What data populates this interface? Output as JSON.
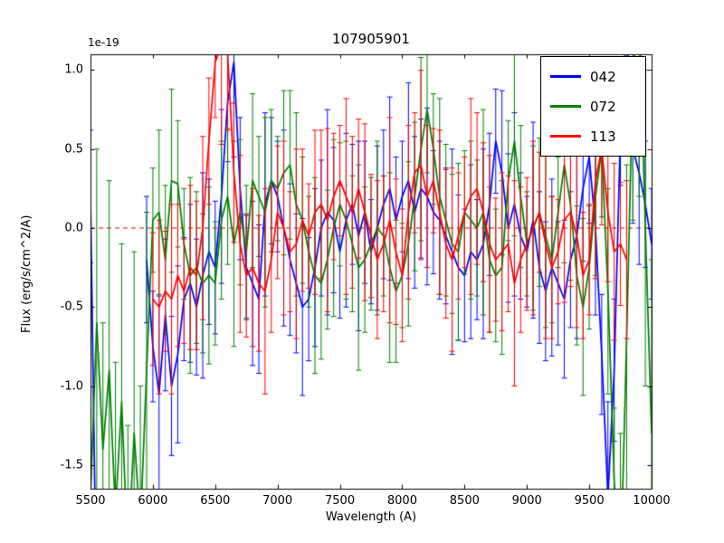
{
  "chart_data": {
    "type": "line",
    "title": "107905901",
    "xlabel": "Wavelength (A)",
    "ylabel": "Flux (erg/s/cm^2/A)",
    "y_offset_label": "1e-19",
    "xlim": [
      5500,
      10000
    ],
    "ylim": [
      -1.65,
      1.1
    ],
    "xticks": [
      5500,
      6000,
      6500,
      7000,
      7500,
      8000,
      8500,
      9000,
      9500,
      10000
    ],
    "yticks": [
      -1.5,
      -1.0,
      -0.5,
      0.0,
      0.5,
      1.0
    ],
    "grid": false,
    "background": "#ffffff",
    "zero_line": {
      "y": 0.0,
      "color": "#dd0000",
      "style": "dashed"
    },
    "legend": {
      "position": "upper right",
      "entries": [
        "042",
        "072",
        "113"
      ]
    },
    "series": [
      {
        "name": "042",
        "color": "#0000ff",
        "x_start": 5500,
        "x_step": 50,
        "y": [
          0.2,
          -2.5,
          null,
          null,
          null,
          null,
          null,
          null,
          null,
          -0.2,
          -0.75,
          -1.05,
          -0.55,
          -1.0,
          -0.8,
          -0.45,
          -0.35,
          -0.5,
          -0.3,
          -0.15,
          -0.25,
          0.2,
          0.8,
          1.05,
          0.25,
          -0.25,
          -0.35,
          -0.45,
          0.15,
          0.3,
          0.2,
          0.0,
          -0.2,
          -0.35,
          -0.5,
          -0.45,
          -0.25,
          0.0,
          0.1,
          0.05,
          -0.15,
          0.05,
          0.15,
          -0.05,
          0.1,
          -0.15,
          0.0,
          0.15,
          0.25,
          0.05,
          0.2,
          0.3,
          0.1,
          0.25,
          0.2,
          0.1,
          0.05,
          -0.05,
          -0.15,
          -0.25,
          -0.3,
          -0.15,
          -0.2,
          -0.1,
          0.15,
          0.55,
          0.35,
          0.0,
          0.15,
          -0.05,
          -0.15,
          0.05,
          -0.25,
          -0.4,
          -0.25,
          -0.35,
          -0.45,
          -0.2,
          -0.05,
          0.25,
          0.45,
          0.0,
          -0.8,
          -1.7,
          -0.9,
          0.6,
          1.3,
          0.5,
          0.35,
          0.15,
          -0.1
        ],
        "err": [
          0.42,
          0.55,
          0.38,
          0.6,
          0.45,
          0.33,
          0.52,
          0.47,
          0.58,
          0.4,
          0.35,
          0.62,
          0.48,
          0.44,
          0.56,
          0.39,
          0.5,
          0.43,
          0.65,
          0.46,
          0.42,
          0.55,
          0.38,
          0.6,
          0.45,
          0.33,
          0.52,
          0.47,
          0.58,
          0.4,
          0.35,
          0.62,
          0.48,
          0.44,
          0.56,
          0.39,
          0.5,
          0.43,
          0.65,
          0.46,
          0.42,
          0.55,
          0.38,
          0.6,
          0.45,
          0.33,
          0.52,
          0.47,
          0.58,
          0.4,
          0.35,
          0.62,
          0.48,
          0.44,
          0.56,
          0.39,
          0.5,
          0.43,
          0.65,
          0.46,
          0.42,
          0.55,
          0.38,
          0.6,
          0.45,
          0.33,
          0.52,
          0.47,
          0.58,
          0.4,
          0.35,
          0.62,
          0.48,
          0.44,
          0.56,
          0.39,
          0.5,
          0.43,
          0.65,
          0.46,
          0.42,
          0.55,
          0.38,
          0.6,
          0.45,
          0.33,
          0.52,
          0.47,
          0.58,
          0.4,
          0.35
        ]
      },
      {
        "name": "072",
        "color": "#008000",
        "x_start": 5500,
        "x_step": 50,
        "y": [
          -1.7,
          -0.6,
          -1.4,
          -0.9,
          -1.8,
          -1.1,
          -2.1,
          -1.3,
          -1.9,
          -0.9,
          0.05,
          0.1,
          -0.2,
          0.3,
          0.28,
          -0.1,
          -0.3,
          -0.25,
          -0.35,
          -0.3,
          -0.35,
          0.05,
          0.2,
          -0.1,
          0.1,
          -0.15,
          0.3,
          0.2,
          0.1,
          0.3,
          0.25,
          0.35,
          0.4,
          0.15,
          0.05,
          -0.15,
          -0.3,
          -0.35,
          -0.2,
          0.0,
          0.15,
          0.05,
          -0.1,
          -0.25,
          -0.2,
          -0.1,
          0.0,
          -0.05,
          -0.25,
          -0.4,
          -0.3,
          -0.1,
          0.2,
          0.5,
          0.75,
          0.5,
          0.2,
          0.05,
          -0.1,
          -0.15,
          0.1,
          0.05,
          0.0,
          0.1,
          -0.2,
          -0.3,
          -0.25,
          0.3,
          0.55,
          0.2,
          -0.1,
          0.0,
          0.1,
          -0.05,
          -0.2,
          0.1,
          0.4,
          0.15,
          -0.3,
          -0.5,
          -0.25,
          0.2,
          0.5,
          -0.4,
          -1.6,
          -2.2,
          -0.7,
          1.0,
          1.4,
          0.0,
          -1.3
        ],
        "err": [
          0.9,
          1.1,
          0.8,
          1.2,
          0.95,
          1.0,
          0.85,
          1.15,
          0.9,
          1.0,
          0.33,
          0.52,
          0.47,
          0.58,
          0.4,
          0.35,
          0.62,
          0.48,
          0.44,
          0.56,
          0.39,
          0.5,
          0.43,
          0.65,
          0.46,
          0.42,
          0.55,
          0.38,
          0.6,
          0.45,
          0.33,
          0.52,
          0.47,
          0.58,
          0.4,
          0.35,
          0.62,
          0.48,
          0.44,
          0.56,
          0.39,
          0.5,
          0.43,
          0.65,
          0.46,
          0.42,
          0.55,
          0.38,
          0.6,
          0.45,
          0.33,
          0.52,
          0.47,
          0.58,
          0.4,
          0.35,
          0.62,
          0.48,
          0.44,
          0.56,
          0.39,
          0.5,
          0.43,
          0.65,
          0.46,
          0.42,
          0.55,
          0.38,
          0.6,
          0.45,
          0.33,
          0.52,
          0.47,
          0.58,
          0.4,
          0.35,
          0.62,
          0.48,
          0.44,
          0.56,
          0.39,
          0.5,
          0.43,
          0.65,
          0.46,
          0.9,
          1.1,
          0.95,
          1.2,
          1.0,
          1.1
        ]
      },
      {
        "name": "113",
        "color": "#ff0000",
        "x_start": 5500,
        "x_step": 50,
        "y": [
          null,
          null,
          null,
          null,
          null,
          null,
          null,
          null,
          null,
          null,
          -0.45,
          -0.5,
          -0.4,
          -0.45,
          -0.3,
          -0.4,
          -0.25,
          -0.3,
          0.0,
          0.55,
          1.05,
          1.15,
          1.1,
          0.35,
          -0.1,
          -0.3,
          -0.25,
          -0.35,
          -0.4,
          -0.2,
          0.1,
          0.0,
          -0.15,
          -0.1,
          0.05,
          -0.05,
          0.1,
          0.15,
          0.05,
          0.2,
          0.3,
          0.2,
          0.1,
          0.25,
          0.1,
          -0.05,
          -0.2,
          -0.1,
          0.05,
          -0.15,
          -0.3,
          0.1,
          0.35,
          0.4,
          0.2,
          0.3,
          0.1,
          -0.1,
          -0.2,
          -0.05,
          0.1,
          0.2,
          0.25,
          0.1,
          -0.1,
          -0.2,
          -0.15,
          -0.1,
          -0.35,
          -0.2,
          -0.1,
          0.0,
          0.1,
          -0.1,
          -0.25,
          -0.15,
          0.05,
          0.1,
          -0.05,
          -0.3,
          -0.2,
          0.3,
          0.5,
          0.1,
          -0.15,
          -0.1,
          -0.2,
          null,
          null,
          null,
          null
        ],
        "err": [
          0.35,
          0.62,
          0.48,
          0.44,
          0.56,
          0.39,
          0.5,
          0.43,
          0.65,
          0.46,
          0.42,
          0.55,
          0.38,
          0.6,
          0.45,
          0.33,
          0.52,
          0.47,
          0.58,
          0.4,
          0.35,
          0.62,
          0.48,
          0.44,
          0.56,
          0.39,
          0.5,
          0.43,
          0.65,
          0.46,
          0.42,
          0.55,
          0.38,
          0.6,
          0.45,
          0.33,
          0.52,
          0.47,
          0.58,
          0.4,
          0.35,
          0.62,
          0.48,
          0.44,
          0.56,
          0.39,
          0.5,
          0.43,
          0.65,
          0.46,
          0.42,
          0.55,
          0.38,
          0.6,
          0.45,
          0.33,
          0.52,
          0.47,
          0.58,
          0.4,
          0.35,
          0.62,
          0.48,
          0.44,
          0.56,
          0.39,
          0.5,
          0.43,
          0.65,
          0.46,
          0.42,
          0.55,
          0.38,
          0.6,
          0.45,
          0.33,
          0.52,
          0.47,
          0.58,
          0.4,
          0.35,
          0.62,
          0.48,
          0.44,
          0.56,
          0.39,
          0.5,
          0.43,
          0.65,
          0.46,
          0.42
        ]
      }
    ]
  }
}
